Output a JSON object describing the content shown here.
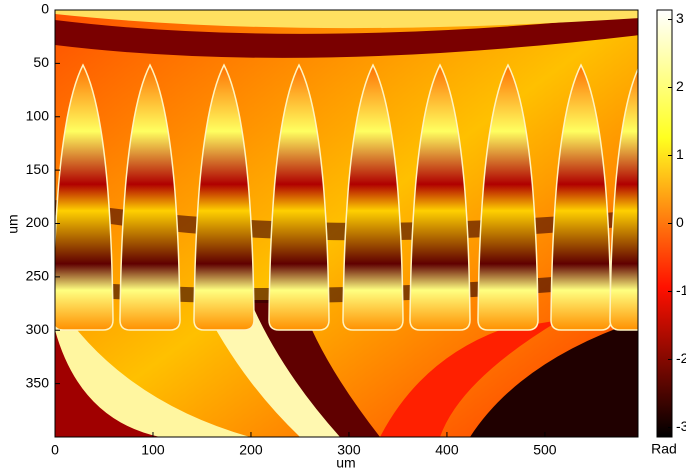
{
  "chart_data": {
    "type": "heatmap",
    "xlabel": "um",
    "ylabel": "um",
    "xlim": [
      0,
      595
    ],
    "xticks": [
      0,
      100,
      200,
      300,
      400,
      500
    ],
    "ylim": [
      0,
      400
    ],
    "yticks": [
      0,
      50,
      100,
      150,
      200,
      250,
      300,
      350
    ],
    "y_reversed": true,
    "colormap": "hot",
    "colorbar_label": "Rad",
    "clim": [
      -3.14,
      3.14
    ],
    "colorbar_ticks": [
      3,
      2,
      1,
      0,
      -1,
      -2,
      -3
    ]
  }
}
